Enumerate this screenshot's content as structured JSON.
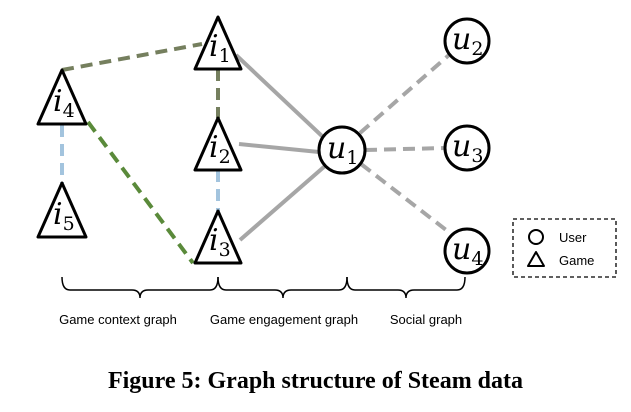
{
  "nodes": {
    "i1": {
      "base": "i",
      "sub": "1"
    },
    "i2": {
      "base": "i",
      "sub": "2"
    },
    "i3": {
      "base": "i",
      "sub": "3"
    },
    "i4": {
      "base": "i",
      "sub": "4"
    },
    "i5": {
      "base": "i",
      "sub": "5"
    },
    "u1": {
      "base": "u",
      "sub": "1"
    },
    "u2": {
      "base": "u",
      "sub": "2"
    },
    "u3": {
      "base": "u",
      "sub": "3"
    },
    "u4": {
      "base": "u",
      "sub": "4"
    }
  },
  "edges": [
    {
      "from": "i4",
      "to": "i1",
      "style": "dashed",
      "color": "#757f5e"
    },
    {
      "from": "i1",
      "to": "i2",
      "style": "dashed",
      "color": "#757f5e"
    },
    {
      "from": "i2",
      "to": "i3",
      "style": "dashed",
      "color": "#a3c4de"
    },
    {
      "from": "i4",
      "to": "i5",
      "style": "dashed",
      "color": "#a3c4de"
    },
    {
      "from": "i4",
      "to": "i3",
      "style": "dashed",
      "color": "#5a8a3a"
    },
    {
      "from": "i1",
      "to": "u1",
      "style": "solid",
      "color": "#a6a6a6"
    },
    {
      "from": "i2",
      "to": "u1",
      "style": "solid",
      "color": "#a6a6a6"
    },
    {
      "from": "i3",
      "to": "u1",
      "style": "solid",
      "color": "#a6a6a6"
    },
    {
      "from": "u1",
      "to": "u2",
      "style": "dashed",
      "color": "#a6a6a6"
    },
    {
      "from": "u1",
      "to": "u3",
      "style": "dashed",
      "color": "#a6a6a6"
    },
    {
      "from": "u1",
      "to": "u4",
      "style": "dashed",
      "color": "#a6a6a6"
    }
  ],
  "legend": {
    "user": "User",
    "game": "Game"
  },
  "braces": {
    "context": "Game context graph",
    "engagement": "Game engagement graph",
    "social": "Social graph"
  },
  "caption": "Figure 5: Graph structure of Steam data"
}
